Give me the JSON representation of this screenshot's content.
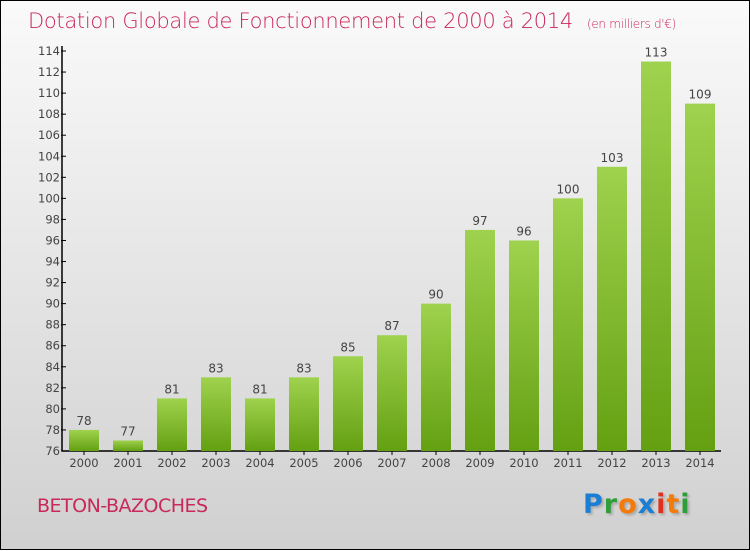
{
  "chart_data": {
    "type": "bar",
    "title": "Dotation Globale de Fonctionnement de 2000 à 2014",
    "subtitle": "(en milliers d'€)",
    "categories": [
      "2000",
      "2001",
      "2002",
      "2003",
      "2004",
      "2005",
      "2006",
      "2007",
      "2008",
      "2009",
      "2010",
      "2011",
      "2012",
      "2013",
      "2014"
    ],
    "values": [
      78,
      77,
      81,
      83,
      81,
      83,
      85,
      87,
      90,
      97,
      96,
      100,
      103,
      113,
      109
    ],
    "xlabel": "",
    "ylabel": "",
    "ylim": [
      76,
      114
    ],
    "yticks": [
      76,
      78,
      80,
      82,
      84,
      86,
      88,
      90,
      92,
      94,
      96,
      98,
      100,
      102,
      104,
      106,
      108,
      110,
      112,
      114
    ],
    "grid": false,
    "colors": {
      "bar_top": "#9fd24e",
      "bar_bottom": "#64a012"
    }
  },
  "commune": "BETON-BAZOCHES",
  "logo": {
    "letters": [
      "P",
      "r",
      "o",
      "x",
      "i",
      "t",
      "i"
    ],
    "colors": [
      "#1a7fd4",
      "#2e9e3a",
      "#f47a0a",
      "#1a7fd4",
      "#e0301e",
      "#f47a0a",
      "#2e9e3a"
    ]
  }
}
